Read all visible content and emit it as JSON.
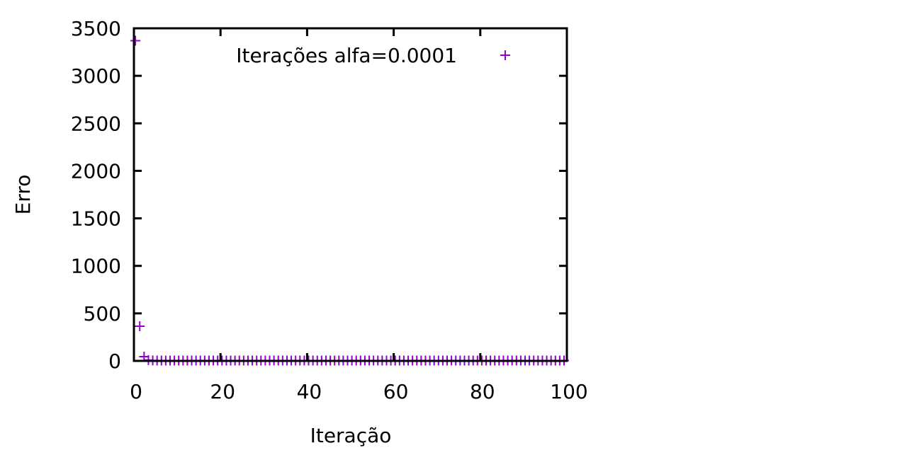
{
  "chart_data": {
    "type": "scatter",
    "title": "",
    "xlabel": "Iteração",
    "ylabel": "Erro",
    "xlim": [
      0,
      100
    ],
    "ylim": [
      0,
      3500
    ],
    "xticks": [
      "0",
      "20",
      "40",
      "60",
      "80",
      "100"
    ],
    "yticks": [
      "0",
      "500",
      "1000",
      "1500",
      "2000",
      "2500",
      "3000",
      "3500"
    ],
    "grid": false,
    "legend_position": "top-right",
    "series": [
      {
        "name": "Iterações alfa=0.0001",
        "color": "#9400d3",
        "marker": "plus",
        "x": [
          1,
          2,
          3,
          4,
          5,
          6,
          7,
          8,
          9,
          10,
          11,
          12,
          13,
          14,
          15,
          16,
          17,
          18,
          19,
          20,
          21,
          22,
          23,
          24,
          25,
          26,
          27,
          28,
          29,
          30,
          31,
          32,
          33,
          34,
          35,
          36,
          37,
          38,
          39,
          40,
          41,
          42,
          43,
          44,
          45,
          46,
          47,
          48,
          49,
          50,
          51,
          52,
          53,
          54,
          55,
          56,
          57,
          58,
          59,
          60,
          61,
          62,
          63,
          64,
          65,
          66,
          67,
          68,
          69,
          70,
          71,
          72,
          73,
          74,
          75,
          76,
          77,
          78,
          79,
          80,
          81,
          82,
          83,
          84,
          85,
          86,
          87,
          88,
          89,
          90,
          91,
          92,
          93,
          94,
          95,
          96,
          97,
          98,
          99,
          100
        ],
        "y": [
          3370,
          365,
          45,
          8,
          5,
          4,
          4,
          4,
          4,
          4,
          4,
          4,
          4,
          4,
          4,
          4,
          4,
          4,
          4,
          4,
          4,
          4,
          4,
          4,
          4,
          4,
          4,
          4,
          4,
          4,
          4,
          4,
          4,
          4,
          4,
          4,
          4,
          4,
          4,
          4,
          4,
          4,
          4,
          4,
          4,
          4,
          4,
          4,
          4,
          4,
          4,
          4,
          4,
          4,
          4,
          4,
          4,
          4,
          4,
          4,
          4,
          4,
          4,
          4,
          4,
          4,
          4,
          4,
          4,
          4,
          4,
          4,
          4,
          4,
          4,
          4,
          4,
          4,
          4,
          4,
          4,
          4,
          4,
          4,
          4,
          4,
          4,
          4,
          4,
          4,
          4,
          4,
          4,
          4,
          4,
          4,
          4,
          4,
          4,
          4
        ]
      }
    ]
  }
}
